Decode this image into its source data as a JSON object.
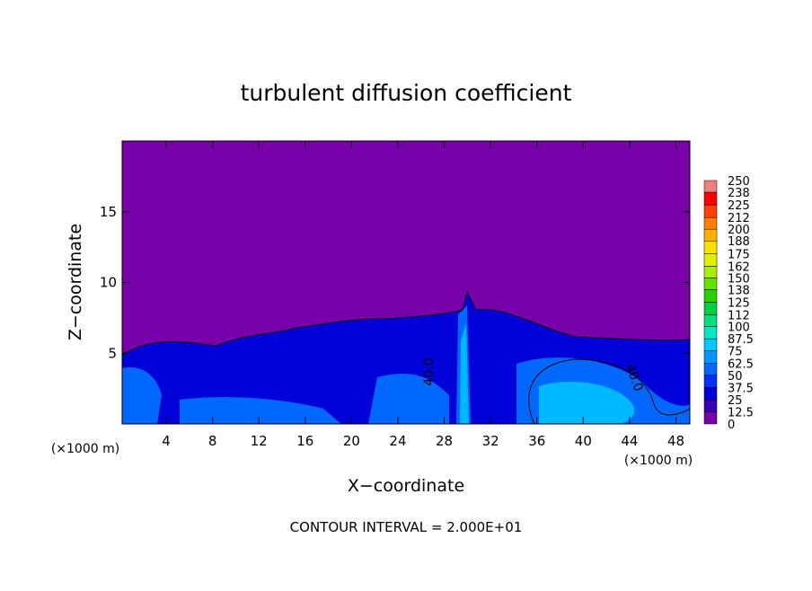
{
  "chart_data": {
    "type": "contour",
    "title": "turbulent diffusion coefficient",
    "x_label": "X−coordinate",
    "y_label": "Z−coordinate",
    "x_unit_left": "(×1000 m)",
    "x_unit_right": "(×1000 m)",
    "footer": "CONTOUR INTERVAL = 2.000E+01",
    "xlim": [
      0.2,
      49.2
    ],
    "ylim": [
      0,
      20
    ],
    "xticks": [
      4,
      8,
      12,
      16,
      20,
      24,
      28,
      32,
      36,
      40,
      44,
      48
    ],
    "yticks": [
      5,
      10,
      15
    ],
    "contour_labels": [
      "40.0",
      "40.0"
    ],
    "colorbar_levels": [
      0,
      12.5,
      25,
      37.5,
      50,
      62.5,
      75,
      87.5,
      100,
      112,
      125,
      138,
      150,
      162,
      175,
      188,
      200,
      212,
      225,
      238,
      250
    ],
    "colorbar_colors": [
      "#7800a8",
      "#3800b8",
      "#0000d8",
      "#0030ff",
      "#0068ff",
      "#0098ff",
      "#00c8ff",
      "#00e8c8",
      "#00e080",
      "#00d040",
      "#28d000",
      "#68e000",
      "#a8f000",
      "#e0f000",
      "#ffe000",
      "#ffb000",
      "#ff8000",
      "#ff4000",
      "#ff0000",
      "#f08080"
    ]
  }
}
